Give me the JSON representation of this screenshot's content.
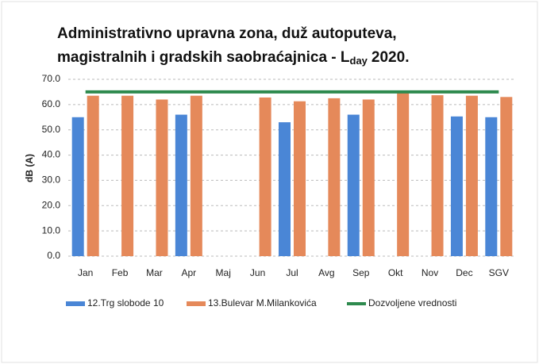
{
  "chart_data": {
    "type": "bar",
    "title_line1": "Administrativno upravna zona, duž autoputeva,",
    "title_line2": "magistralnih i gradskih saobraćajnica - L",
    "title_subscript": "day",
    "title_year": "2020.",
    "ylabel": "dB (A)",
    "categories": [
      "Jan",
      "Feb",
      "Mar",
      "Apr",
      "Maj",
      "Jun",
      "Jul",
      "Avg",
      "Sep",
      "Okt",
      "Nov",
      "Dec",
      "SGV"
    ],
    "series": [
      {
        "name": "12.Trg slobode 10",
        "color": "#4a86d6",
        "values": [
          55,
          null,
          null,
          56,
          null,
          null,
          53,
          null,
          56,
          null,
          null,
          55.3,
          55
        ]
      },
      {
        "name": "13.Bulevar M.Milankovića",
        "color": "#e5895a",
        "values": [
          63.5,
          63.5,
          62,
          63.5,
          null,
          62.8,
          61.3,
          62.5,
          62,
          64.5,
          63.7,
          63.5,
          63
        ]
      },
      {
        "name": "Dozvoljene vrednosti",
        "color": "#2e8a4e",
        "type": "line",
        "values": [
          65,
          65,
          65,
          65,
          65,
          65,
          65,
          65,
          65,
          65,
          65,
          65,
          65
        ]
      }
    ],
    "ylim": [
      0,
      70
    ],
    "yticks": [
      {
        "value": 0,
        "label": "0.0"
      },
      {
        "value": 10,
        "label": "10.0"
      },
      {
        "value": 20,
        "label": "20.0"
      },
      {
        "value": 30,
        "label": "30.0"
      },
      {
        "value": 40,
        "label": "40.0"
      },
      {
        "value": 50,
        "label": "50.0"
      },
      {
        "value": 60,
        "label": "60.0"
      },
      {
        "value": 70,
        "label": "70.0"
      }
    ],
    "grid": true,
    "legend": "bottom"
  }
}
